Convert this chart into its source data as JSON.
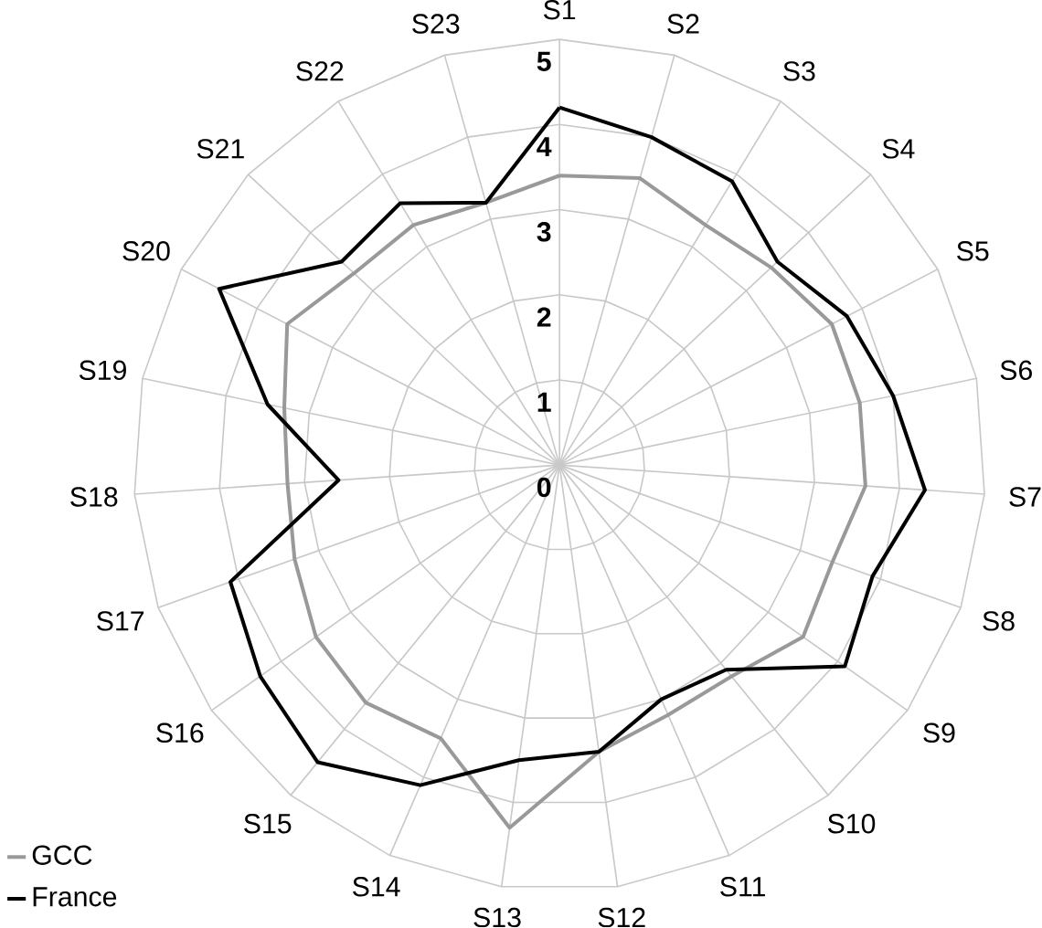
{
  "chart_data": {
    "type": "radar",
    "categories": [
      "S1",
      "S2",
      "S3",
      "S4",
      "S5",
      "S6",
      "S7",
      "S8",
      "S9",
      "S10",
      "S11",
      "S12",
      "S13",
      "S14",
      "S15",
      "S16",
      "S17",
      "S18",
      "S19",
      "S20",
      "S21",
      "S22",
      "S23"
    ],
    "series": [
      {
        "name": "GCC",
        "color": "#999999",
        "values": [
          3.4,
          3.5,
          3.3,
          3.4,
          3.6,
          3.6,
          3.6,
          3.4,
          3.5,
          3.2,
          3.2,
          3.4,
          4.3,
          3.5,
          3.6,
          3.5,
          3.3,
          3.2,
          3.3,
          3.6,
          3.3,
          3.3,
          3.2
        ]
      },
      {
        "name": "France",
        "color": "#000000",
        "values": [
          4.2,
          4.0,
          3.9,
          3.5,
          3.8,
          4.0,
          4.3,
          3.9,
          4.1,
          3.1,
          3.0,
          3.4,
          3.5,
          4.1,
          4.5,
          4.3,
          4.1,
          2.6,
          3.5,
          4.5,
          3.5,
          3.6,
          3.2
        ]
      }
    ],
    "ylim": [
      0,
      5
    ],
    "yticks": [
      0,
      1,
      2,
      3,
      4,
      5
    ],
    "grid": true,
    "legend": "bottom left"
  }
}
